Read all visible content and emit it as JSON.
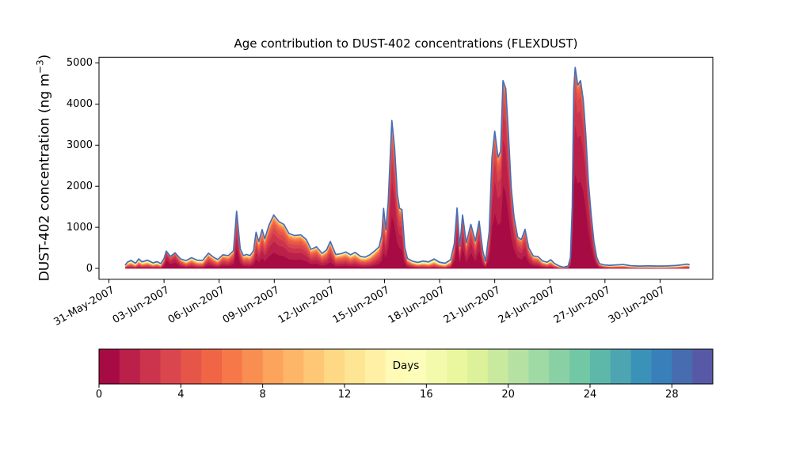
{
  "figure": {
    "background": "#ffffff"
  },
  "chart_data": {
    "type": "area",
    "subtype": "stacked-area-by-age",
    "title": "Age contribution to DUST-402 concentrations (FLEXDUST)",
    "xlabel": "",
    "ylabel": "DUST-402 concentration (ng m⁻³)",
    "ylabel_parts": {
      "pre": "DUST-402 concentration (ng m",
      "sup": "−3",
      "post": ")"
    },
    "grid": false,
    "xlim_days": [
      -0.54,
      32.87
    ],
    "ylim": [
      -264,
      5140
    ],
    "y_ticks": [
      0,
      1000,
      2000,
      3000,
      4000,
      5000
    ],
    "x_ticks": [
      {
        "day": 0,
        "label": "31-May-2007"
      },
      {
        "day": 3,
        "label": "03-Jun-2007"
      },
      {
        "day": 6,
        "label": "06-Jun-2007"
      },
      {
        "day": 9,
        "label": "09-Jun-2007"
      },
      {
        "day": 12,
        "label": "12-Jun-2007"
      },
      {
        "day": 15,
        "label": "15-Jun-2007"
      },
      {
        "day": 18,
        "label": "18-Jun-2007"
      },
      {
        "day": 21,
        "label": "21-Jun-2007"
      },
      {
        "day": 24,
        "label": "24-Jun-2007"
      },
      {
        "day": 27,
        "label": "27-Jun-2007"
      },
      {
        "day": 30,
        "label": "30-Jun-2007"
      }
    ],
    "colormap": {
      "name": "Spectral",
      "stops": [
        "#9e0142",
        "#d53e4f",
        "#f46d43",
        "#fdae61",
        "#fee08b",
        "#ffffbf",
        "#e6f598",
        "#abdda4",
        "#66c2a5",
        "#3288bd",
        "#5e4fa2"
      ]
    },
    "stack": {
      "n_age_layers": 30,
      "age_min_days": 0,
      "age_max_days": 30,
      "age_model": "cumulative fraction younger than age a = (1-exp(-a/tau))/(1-exp(-30/tau))",
      "envelope_line_color": "#4a6db3"
    },
    "colorbar": {
      "label": "Days",
      "min": 0,
      "max": 30,
      "n_segments": 30,
      "ticks": [
        0,
        4,
        8,
        12,
        16,
        20,
        24,
        28
      ]
    },
    "series": {
      "points_format": [
        "t_days_after_31-May-2007",
        "total_concentration_ng_m3",
        "tau_age_scale_days"
      ],
      "points": [
        [
          0.9,
          85,
          9
        ],
        [
          1.0,
          150,
          9
        ],
        [
          1.2,
          195,
          9
        ],
        [
          1.45,
          125,
          10
        ],
        [
          1.62,
          230,
          8
        ],
        [
          1.8,
          160,
          9
        ],
        [
          2.1,
          200,
          9
        ],
        [
          2.4,
          135,
          10
        ],
        [
          2.62,
          165,
          9
        ],
        [
          2.82,
          115,
          10
        ],
        [
          3.0,
          240,
          3.5
        ],
        [
          3.12,
          420,
          1.5
        ],
        [
          3.35,
          290,
          2.2
        ],
        [
          3.6,
          380,
          2.0
        ],
        [
          3.9,
          230,
          4
        ],
        [
          4.2,
          190,
          7
        ],
        [
          4.5,
          260,
          6
        ],
        [
          4.8,
          200,
          8
        ],
        [
          5.1,
          195,
          8
        ],
        [
          5.42,
          370,
          4
        ],
        [
          5.7,
          270,
          5
        ],
        [
          5.92,
          215,
          6
        ],
        [
          6.2,
          330,
          4
        ],
        [
          6.5,
          310,
          4.5
        ],
        [
          6.78,
          430,
          3.5
        ],
        [
          6.95,
          1390,
          2.2
        ],
        [
          7.15,
          470,
          3
        ],
        [
          7.32,
          310,
          4.5
        ],
        [
          7.5,
          340,
          5
        ],
        [
          7.68,
          310,
          5
        ],
        [
          7.87,
          430,
          4
        ],
        [
          8.01,
          880,
          3.2
        ],
        [
          8.16,
          650,
          3.6
        ],
        [
          8.34,
          945,
          3.0
        ],
        [
          8.48,
          720,
          3.4
        ],
        [
          8.72,
          1060,
          3.0
        ],
        [
          8.97,
          1300,
          2.8
        ],
        [
          9.25,
          1140,
          3.0
        ],
        [
          9.52,
          1070,
          3.0
        ],
        [
          9.8,
          850,
          3.2
        ],
        [
          10.1,
          800,
          3.2
        ],
        [
          10.45,
          815,
          3.2
        ],
        [
          10.75,
          700,
          3.4
        ],
        [
          11.0,
          462,
          3.8
        ],
        [
          11.3,
          525,
          3.8
        ],
        [
          11.6,
          366,
          4.5
        ],
        [
          11.85,
          450,
          4.2
        ],
        [
          12.05,
          655,
          3.5
        ],
        [
          12.35,
          335,
          5
        ],
        [
          12.65,
          360,
          5
        ],
        [
          12.9,
          398,
          5
        ],
        [
          13.15,
          330,
          5.5
        ],
        [
          13.4,
          390,
          5.5
        ],
        [
          13.7,
          290,
          6
        ],
        [
          13.95,
          275,
          6
        ],
        [
          14.2,
          330,
          6
        ],
        [
          14.45,
          420,
          5
        ],
        [
          14.7,
          520,
          4
        ],
        [
          14.85,
          800,
          3.5
        ],
        [
          14.95,
          1460,
          3.0
        ],
        [
          15.07,
          940,
          3.0
        ],
        [
          15.2,
          1600,
          2.6
        ],
        [
          15.4,
          3600,
          2.2
        ],
        [
          15.55,
          2930,
          2.2
        ],
        [
          15.7,
          1800,
          2.3
        ],
        [
          15.82,
          1460,
          2.4
        ],
        [
          15.95,
          1430,
          2.5
        ],
        [
          16.1,
          520,
          3.5
        ],
        [
          16.25,
          240,
          5
        ],
        [
          16.5,
          180,
          7
        ],
        [
          16.8,
          145,
          9
        ],
        [
          17.1,
          180,
          10
        ],
        [
          17.4,
          160,
          11
        ],
        [
          17.7,
          230,
          10
        ],
        [
          18.0,
          150,
          11
        ],
        [
          18.3,
          125,
          12
        ],
        [
          18.6,
          210,
          8
        ],
        [
          18.8,
          600,
          3
        ],
        [
          18.95,
          1470,
          1.8
        ],
        [
          19.1,
          530,
          3
        ],
        [
          19.25,
          1300,
          1.9
        ],
        [
          19.45,
          620,
          3.2
        ],
        [
          19.7,
          1070,
          2.2
        ],
        [
          19.95,
          660,
          3
        ],
        [
          20.15,
          1150,
          2.0
        ],
        [
          20.35,
          420,
          3.5
        ],
        [
          20.5,
          170,
          5
        ],
        [
          20.7,
          900,
          3
        ],
        [
          20.85,
          2700,
          2.2
        ],
        [
          21.0,
          3340,
          1.9
        ],
        [
          21.18,
          2700,
          2.0
        ],
        [
          21.32,
          2850,
          2.0
        ],
        [
          21.45,
          4570,
          1.7
        ],
        [
          21.6,
          4380,
          1.8
        ],
        [
          21.75,
          3240,
          1.9
        ],
        [
          21.9,
          1950,
          2.0
        ],
        [
          22.05,
          1250,
          2.1
        ],
        [
          22.25,
          760,
          2.3
        ],
        [
          22.45,
          700,
          2.6
        ],
        [
          22.65,
          950,
          2.3
        ],
        [
          22.85,
          500,
          3
        ],
        [
          23.1,
          300,
          4
        ],
        [
          23.35,
          290,
          4.5
        ],
        [
          23.6,
          180,
          6
        ],
        [
          23.85,
          150,
          7
        ],
        [
          24.05,
          210,
          7
        ],
        [
          24.25,
          120,
          8
        ],
        [
          24.5,
          60,
          9
        ],
        [
          24.75,
          28,
          9
        ],
        [
          25.0,
          60,
          5
        ],
        [
          25.12,
          260,
          2.5
        ],
        [
          25.22,
          1500,
          1.8
        ],
        [
          25.3,
          4350,
          1.6
        ],
        [
          25.38,
          4890,
          1.55
        ],
        [
          25.52,
          4460,
          1.6
        ],
        [
          25.67,
          4570,
          1.6
        ],
        [
          25.82,
          4100,
          1.6
        ],
        [
          25.95,
          3300,
          1.6
        ],
        [
          26.1,
          2100,
          1.7
        ],
        [
          26.25,
          1300,
          1.8
        ],
        [
          26.4,
          650,
          2.1
        ],
        [
          26.55,
          270,
          2.8
        ],
        [
          26.7,
          115,
          4.5
        ],
        [
          26.95,
          85,
          7
        ],
        [
          27.25,
          75,
          9
        ],
        [
          27.6,
          85,
          10
        ],
        [
          28.0,
          95,
          10
        ],
        [
          28.4,
          65,
          12
        ],
        [
          28.9,
          56,
          13
        ],
        [
          29.4,
          62,
          14
        ],
        [
          29.9,
          55,
          15
        ],
        [
          30.4,
          60,
          15
        ],
        [
          30.9,
          72,
          14
        ],
        [
          31.2,
          88,
          12
        ],
        [
          31.45,
          105,
          10
        ],
        [
          31.58,
          92,
          10
        ]
      ]
    }
  }
}
